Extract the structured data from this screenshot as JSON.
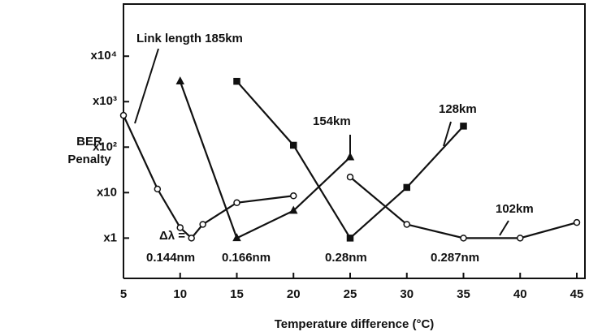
{
  "chart_data": {
    "type": "line",
    "xlabel": "Temperature difference (°C)",
    "ylabel": [
      "BER",
      "Penalty"
    ],
    "log_y": true,
    "xlim": [
      5,
      45
    ],
    "xticks": [
      5,
      10,
      15,
      20,
      25,
      30,
      35,
      40,
      45
    ],
    "ylim": [
      0.13,
      140000
    ],
    "yticks": [
      {
        "value": 1,
        "label": "x1"
      },
      {
        "value": 10,
        "label": "x10"
      },
      {
        "value": 100,
        "label": "x10²"
      },
      {
        "value": 1000,
        "label": "x10³"
      },
      {
        "value": 10000,
        "label": "x10⁴"
      }
    ],
    "series": [
      {
        "color": "#111",
        "marker": "circle",
        "x": [
          5,
          8,
          10,
          11,
          12,
          15,
          20
        ],
        "values": [
          500,
          12,
          1.7,
          1,
          2,
          6,
          8.5
        ]
      },
      {
        "color": "#111",
        "marker": "triangle",
        "x": [
          10,
          15,
          20,
          25
        ],
        "values": [
          2800,
          1,
          4,
          60
        ]
      },
      {
        "color": "#111",
        "marker": "square",
        "x": [
          15,
          20,
          25,
          30,
          35
        ],
        "values": [
          2800,
          110,
          1,
          13,
          290
        ]
      },
      {
        "color": "#111",
        "marker": "circle",
        "x": [
          25,
          30,
          35,
          40,
          45
        ],
        "values": [
          22,
          2,
          1,
          1,
          2.2
        ]
      }
    ],
    "annotations": [
      "Link length 185km",
      "154km",
      "128km",
      "102km",
      "Δλ =",
      "0.144nm",
      "0.166nm",
      "0.28nm",
      "0.287nm"
    ]
  }
}
